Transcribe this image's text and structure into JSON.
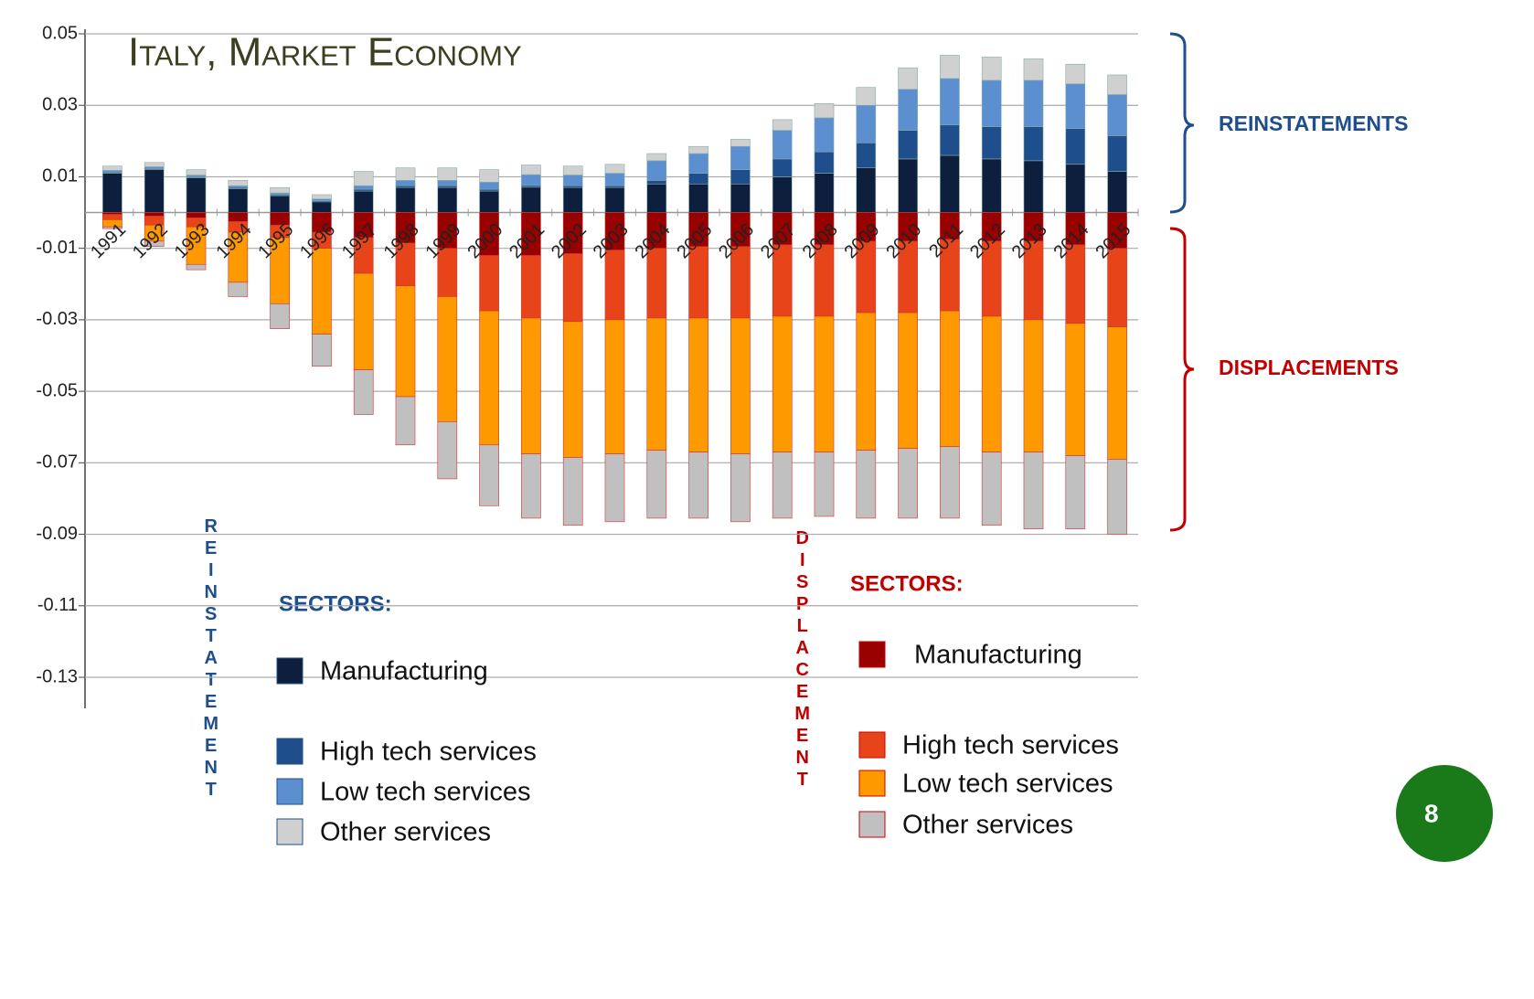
{
  "chart_data": {
    "type": "bar",
    "title": "Italy, Market Economy",
    "categories": [
      "1991",
      "1992",
      "1993",
      "1994",
      "1995",
      "1996",
      "1997",
      "1998",
      "1999",
      "2000",
      "2001",
      "2002",
      "2003",
      "2004",
      "2005",
      "2006",
      "2007",
      "2008",
      "2009",
      "2010",
      "2011",
      "2012",
      "2013",
      "2014",
      "2015"
    ],
    "series": [
      {
        "name": "Manufacturing",
        "color": "#0d1f3c",
        "values": [
          0.011,
          0.012,
          0.0097,
          0.0067,
          0.0047,
          0.003,
          0.006,
          0.007,
          0.007,
          0.006,
          0.0071,
          0.007,
          0.007,
          0.008,
          0.008,
          0.008,
          0.01,
          0.011,
          0.0125,
          0.015,
          0.016,
          0.015,
          0.0145,
          0.0135,
          0.0115
        ]
      },
      {
        "name": "High tech services",
        "color": "#1f4e8c",
        "values": [
          0.0003,
          0.0003,
          0.0003,
          0.0003,
          0.0003,
          0.0003,
          0.0005,
          0.0005,
          0.0005,
          0.0005,
          0.0005,
          0.0005,
          0.0005,
          0.001,
          0.003,
          0.004,
          0.005,
          0.006,
          0.007,
          0.008,
          0.0085,
          0.009,
          0.0095,
          0.01,
          0.01
        ]
      },
      {
        "name": "Low tech services",
        "color": "#5b8fd0",
        "values": [
          0.0005,
          0.0005,
          0.0005,
          0.0005,
          0.0005,
          0.0005,
          0.001,
          0.0015,
          0.0015,
          0.002,
          0.003,
          0.003,
          0.0035,
          0.0055,
          0.0055,
          0.0065,
          0.008,
          0.0095,
          0.0105,
          0.0115,
          0.013,
          0.013,
          0.013,
          0.0125,
          0.0115
        ]
      },
      {
        "name": "Other services",
        "color": "#d0d0d0",
        "values": [
          0.0012,
          0.0012,
          0.0015,
          0.0015,
          0.0015,
          0.0012,
          0.004,
          0.0035,
          0.0035,
          0.0035,
          0.0027,
          0.0025,
          0.0025,
          0.002,
          0.002,
          0.002,
          0.003,
          0.004,
          0.005,
          0.006,
          0.0065,
          0.0065,
          0.006,
          0.0055,
          0.0055
        ]
      },
      {
        "name": "Manufacturing",
        "color": "#990000",
        "values": [
          -0.0005,
          -0.001,
          -0.0015,
          -0.0025,
          -0.0035,
          -0.0055,
          -0.007,
          -0.0085,
          -0.01,
          -0.012,
          -0.012,
          -0.0115,
          -0.0105,
          -0.01,
          -0.0095,
          -0.0095,
          -0.009,
          -0.009,
          -0.008,
          -0.008,
          -0.0075,
          -0.008,
          -0.008,
          -0.009,
          -0.01
        ]
      },
      {
        "name": "High tech services",
        "color": "#e8441a",
        "values": [
          -0.0015,
          -0.0025,
          -0.0025,
          -0.003,
          -0.0035,
          -0.0045,
          -0.01,
          -0.012,
          -0.0135,
          -0.0155,
          -0.0175,
          -0.019,
          -0.0195,
          -0.0195,
          -0.02,
          -0.02,
          -0.02,
          -0.02,
          -0.02,
          -0.02,
          -0.02,
          -0.021,
          -0.022,
          -0.022,
          -0.022
        ]
      },
      {
        "name": "Low tech services",
        "color": "#ff9900",
        "values": [
          -0.002,
          -0.0045,
          -0.0105,
          -0.014,
          -0.0185,
          -0.024,
          -0.027,
          -0.031,
          -0.035,
          -0.0375,
          -0.038,
          -0.038,
          -0.0375,
          -0.037,
          -0.0375,
          -0.038,
          -0.038,
          -0.038,
          -0.0385,
          -0.038,
          -0.038,
          -0.038,
          -0.037,
          -0.037,
          -0.037
        ]
      },
      {
        "name": "Other services",
        "color": "#c0c0c0",
        "values": [
          -0.0005,
          -0.0015,
          -0.0015,
          -0.004,
          -0.007,
          -0.009,
          -0.0125,
          -0.0135,
          -0.016,
          -0.017,
          -0.018,
          -0.019,
          -0.019,
          -0.019,
          -0.0185,
          -0.019,
          -0.0185,
          -0.018,
          -0.019,
          -0.0195,
          -0.02,
          -0.0205,
          -0.0215,
          -0.0205,
          -0.021
        ]
      }
    ],
    "ylim": [
      -0.13,
      0.05
    ],
    "yticks": [
      0.05,
      0.03,
      0.01,
      -0.01,
      -0.03,
      -0.05,
      -0.07,
      -0.09,
      -0.11,
      -0.13
    ],
    "grid": true,
    "annotations": [
      "REINSTATEMENTS",
      "DISPLACEMENTS",
      "REINSTATEMENT",
      "DISPLACEMENT",
      "SECTORS:",
      "SECTORS:"
    ]
  },
  "page_number": 8
}
